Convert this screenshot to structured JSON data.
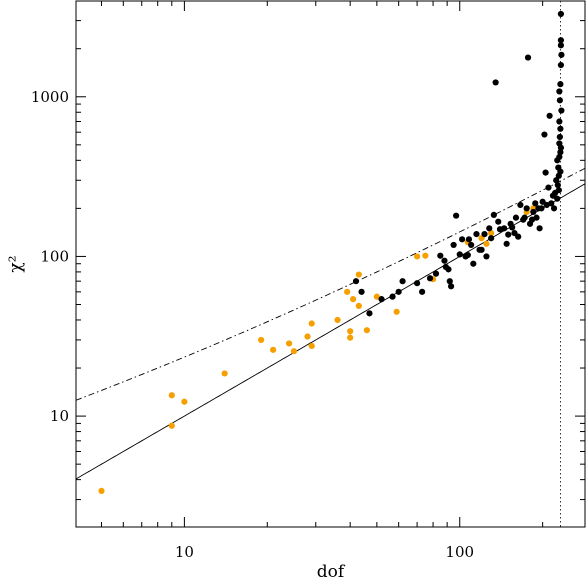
{
  "chart_data": {
    "type": "scatter",
    "xlabel": "dof",
    "ylabel": "χ²",
    "xscale": "log",
    "yscale": "log",
    "xlim": [
      4.04,
      285
    ],
    "ylim": [
      2.02,
      3980
    ],
    "x_ticks": [
      {
        "value": 10,
        "label": "10"
      },
      {
        "value": 100,
        "label": "100"
      }
    ],
    "y_ticks": [
      {
        "value": 10,
        "label": "10"
      },
      {
        "value": 100,
        "label": "100"
      },
      {
        "value": 1000,
        "label": "1000"
      }
    ],
    "grid": false,
    "legend": "none",
    "colors": {
      "orange": "#f5a000",
      "black": "#000000"
    },
    "series": [
      {
        "color": "orange",
        "points": [
          [
            5,
            3.4
          ],
          [
            9,
            13.5
          ],
          [
            9,
            8.7
          ],
          [
            10,
            12.3
          ],
          [
            14,
            18.5
          ],
          [
            19,
            30
          ],
          [
            21,
            26
          ],
          [
            24,
            28.5
          ],
          [
            25,
            25.5
          ],
          [
            28,
            31.5
          ],
          [
            29,
            27.5
          ],
          [
            29,
            38
          ],
          [
            36,
            40
          ],
          [
            39,
            60
          ],
          [
            40,
            31
          ],
          [
            40,
            34
          ],
          [
            41,
            54
          ],
          [
            43,
            49
          ],
          [
            43,
            77
          ],
          [
            46,
            34.5
          ],
          [
            50,
            56
          ],
          [
            59,
            45
          ],
          [
            70,
            100
          ],
          [
            75,
            101
          ],
          [
            80,
            72
          ],
          [
            107,
            123
          ],
          [
            120,
            130
          ],
          [
            125,
            120
          ],
          [
            130,
            140
          ],
          [
            175,
            190
          ],
          [
            185,
            200
          ]
        ]
      },
      {
        "color": "black",
        "points": [
          [
            42,
            70
          ],
          [
            44,
            60
          ],
          [
            47,
            44
          ],
          [
            52,
            54
          ],
          [
            57,
            56
          ],
          [
            60,
            60
          ],
          [
            62,
            70
          ],
          [
            70,
            68
          ],
          [
            73,
            60
          ],
          [
            78,
            73
          ],
          [
            82,
            78
          ],
          [
            85,
            101
          ],
          [
            88,
            94
          ],
          [
            89,
            86
          ],
          [
            91,
            83
          ],
          [
            92,
            70
          ],
          [
            93,
            65
          ],
          [
            95,
            118
          ],
          [
            97,
            180
          ],
          [
            100,
            103
          ],
          [
            102,
            128
          ],
          [
            105,
            100
          ],
          [
            107,
            102
          ],
          [
            108,
            128
          ],
          [
            110,
            118
          ],
          [
            112,
            90
          ],
          [
            115,
            138
          ],
          [
            118,
            110
          ],
          [
            120,
            110
          ],
          [
            123,
            138
          ],
          [
            125,
            100
          ],
          [
            128,
            150
          ],
          [
            130,
            130
          ],
          [
            133,
            182
          ],
          [
            135,
            1230
          ],
          [
            138,
            165
          ],
          [
            140,
            148
          ],
          [
            145,
            150
          ],
          [
            148,
            120
          ],
          [
            150,
            137
          ],
          [
            153,
            160
          ],
          [
            155,
            152
          ],
          [
            158,
            140
          ],
          [
            160,
            175
          ],
          [
            163,
            133
          ],
          [
            166,
            210
          ],
          [
            170,
            170
          ],
          [
            172,
            175
          ],
          [
            175,
            200
          ],
          [
            177,
            1760
          ],
          [
            180,
            160
          ],
          [
            183,
            170
          ],
          [
            185,
            190
          ],
          [
            188,
            215
          ],
          [
            190,
            175
          ],
          [
            193,
            200
          ],
          [
            195,
            150
          ],
          [
            198,
            200
          ],
          [
            200,
            220
          ],
          [
            203,
            580
          ],
          [
            205,
            335
          ],
          [
            207,
            210
          ],
          [
            210,
            270
          ],
          [
            212,
            760
          ],
          [
            215,
            215
          ],
          [
            218,
            240
          ],
          [
            220,
            200
          ],
          [
            222,
            250
          ],
          [
            224,
            300
          ],
          [
            226,
            230
          ],
          [
            226,
            400
          ],
          [
            227,
            280
          ],
          [
            228,
            360
          ],
          [
            229,
            260
          ],
          [
            229,
            320
          ],
          [
            230,
            420
          ],
          [
            230,
            510
          ],
          [
            230,
            700
          ],
          [
            230,
            1080
          ],
          [
            231,
            560
          ],
          [
            231,
            950
          ],
          [
            232,
            340
          ],
          [
            232,
            450
          ],
          [
            232,
            630
          ],
          [
            232,
            1200
          ],
          [
            233,
            480
          ],
          [
            233,
            1580
          ],
          [
            233,
            2100
          ],
          [
            233,
            2260
          ],
          [
            233,
            3300
          ],
          [
            234,
            820
          ],
          [
            234,
            1830
          ]
        ]
      }
    ],
    "lines": [
      {
        "style": "solid",
        "function": "y = x"
      },
      {
        "style": "dash-dot",
        "function": "y = x + 3·sqrt(2x)"
      },
      {
        "style": "dotted-vertical",
        "x": 232
      }
    ]
  }
}
